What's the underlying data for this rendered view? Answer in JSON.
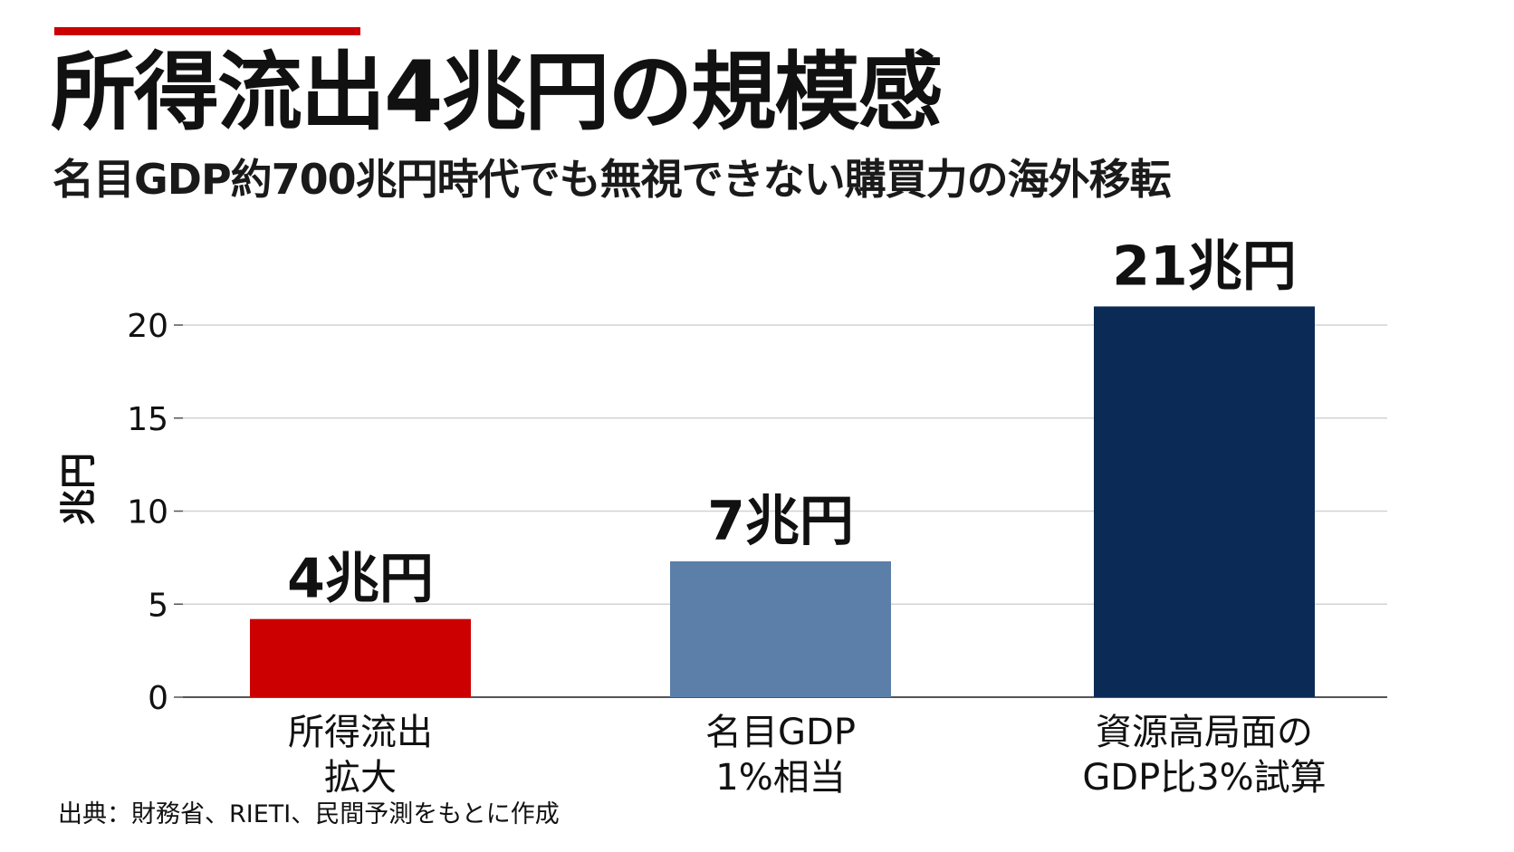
{
  "header": {
    "title": "所得流出4兆円の規模感",
    "subtitle": "名目GDP約700兆円時代でも無視できない購買力の海外移転"
  },
  "footer": {
    "source": "出典：財務省、RIETI、民間予測をもとに作成"
  },
  "colors": {
    "accent": "#cc0000",
    "gridline": "#d3d3d3",
    "axis": "#555555"
  },
  "chart_data": {
    "type": "bar",
    "title": "",
    "xlabel": "",
    "ylabel": "兆円",
    "ylim": [
      0,
      22
    ],
    "yticks": [
      "0",
      "5",
      "10",
      "15",
      "20"
    ],
    "grid": true,
    "categories": [
      [
        "所得流出",
        "拡大"
      ],
      [
        "名目GDP",
        "1%相当"
      ],
      [
        "資源高局面の",
        "GDP比3%試算"
      ]
    ],
    "values": [
      4.2,
      7.3,
      21
    ],
    "data_labels": [
      "4兆円",
      "7兆円",
      "21兆円"
    ],
    "bar_colors": [
      "#cc0000",
      "#5b7fa8",
      "#0b2a55"
    ]
  }
}
